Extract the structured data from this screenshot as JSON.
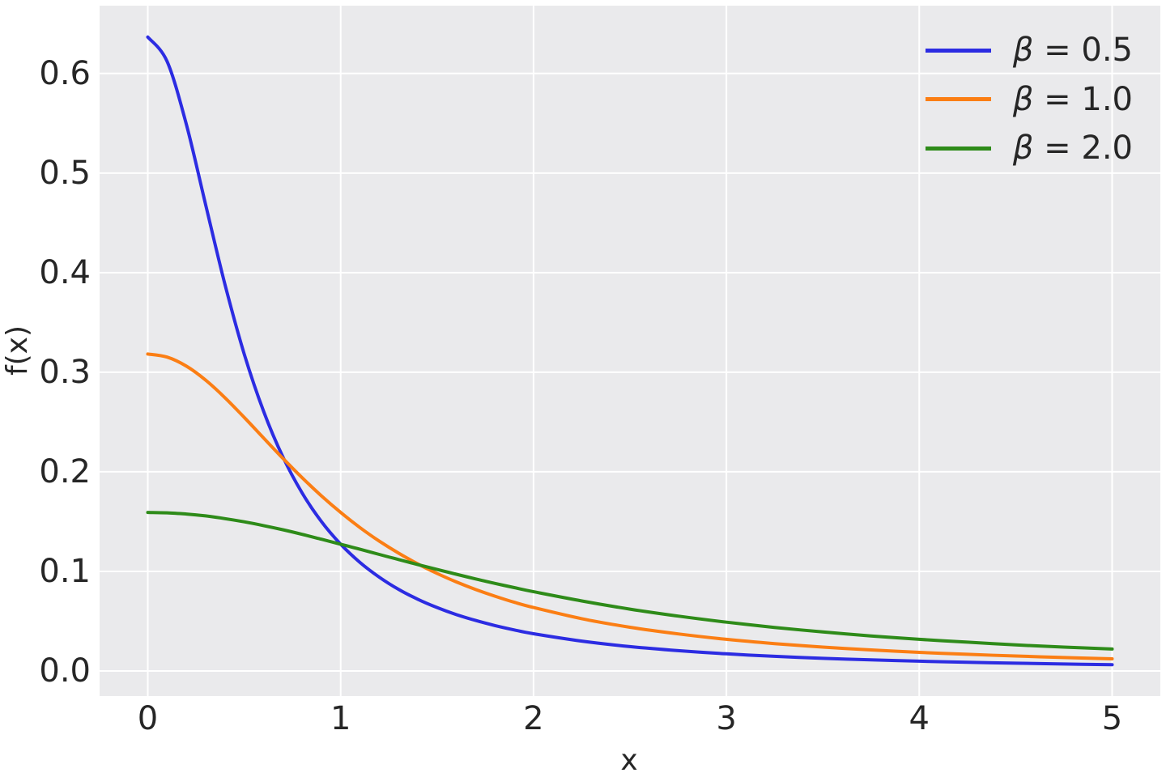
{
  "figure": {
    "background": "#ffffff"
  },
  "axes": {
    "face_color": "#eaeaec",
    "grid_color": "#ffffff",
    "text_color": "#262626",
    "grid_linewidth": 2,
    "curve_linewidth": 4
  },
  "chart_data": {
    "type": "line",
    "title": "",
    "xlabel": "x",
    "ylabel": "f(x)",
    "grid": true,
    "legend_position": "upper right",
    "xlim": [
      -0.25,
      5.25
    ],
    "ylim": [
      -0.0252,
      0.6681
    ],
    "xtick_values": [
      0,
      1,
      2,
      3,
      4,
      5
    ],
    "xtick_labels": [
      "0",
      "1",
      "2",
      "3",
      "4",
      "5"
    ],
    "ytick_values": [
      0.0,
      0.1,
      0.2,
      0.3,
      0.4,
      0.5,
      0.6
    ],
    "ytick_labels": [
      "0.0",
      "0.1",
      "0.2",
      "0.3",
      "0.4",
      "0.5",
      "0.6"
    ],
    "x": [
      0,
      0.1,
      0.2,
      0.3,
      0.4,
      0.5,
      0.6,
      0.7,
      0.8,
      0.9,
      1.0,
      1.1,
      1.2,
      1.3,
      1.4,
      1.5,
      1.6,
      1.7,
      1.8,
      1.9,
      2.0,
      2.25,
      2.5,
      2.75,
      3.0,
      3.25,
      3.5,
      3.75,
      4.0,
      4.25,
      4.5,
      4.75,
      5.0
    ],
    "series": [
      {
        "name": "β = 0.5",
        "symbol": "β",
        "label_rest": " = 0.5",
        "beta": 0.5,
        "color": "#2c2ce2",
        "values": [
          0.6366,
          0.6121,
          0.5488,
          0.4681,
          0.3882,
          0.3183,
          0.2609,
          0.2151,
          0.1788,
          0.1501,
          0.1273,
          0.109,
          0.0942,
          0.082,
          0.072,
          0.0637,
          0.0566,
          0.0507,
          0.0456,
          0.0412,
          0.0374,
          0.03,
          0.0245,
          0.0204,
          0.0172,
          0.0147,
          0.0127,
          0.0111,
          0.0098,
          0.0087,
          0.0078,
          0.007,
          0.0063
        ]
      },
      {
        "name": "β = 1.0",
        "symbol": "β",
        "label_rest": " = 1.0",
        "beta": 1.0,
        "color": "#fb7e14",
        "values": [
          0.3183,
          0.3152,
          0.3061,
          0.292,
          0.2744,
          0.2546,
          0.234,
          0.2136,
          0.1941,
          0.1759,
          0.1592,
          0.144,
          0.1304,
          0.1183,
          0.1075,
          0.0979,
          0.0894,
          0.0818,
          0.0751,
          0.069,
          0.0637,
          0.0525,
          0.0439,
          0.0372,
          0.0318,
          0.0275,
          0.024,
          0.0211,
          0.0187,
          0.0167,
          0.015,
          0.0135,
          0.0122
        ]
      },
      {
        "name": "β = 2.0",
        "symbol": "β",
        "label_rest": " = 2.0",
        "beta": 2.0,
        "color": "#2e8b19",
        "values": [
          0.1592,
          0.1588,
          0.1576,
          0.1557,
          0.153,
          0.1498,
          0.146,
          0.1418,
          0.1372,
          0.1323,
          0.1273,
          0.1222,
          0.117,
          0.1119,
          0.1068,
          0.1019,
          0.0971,
          0.0924,
          0.0879,
          0.0837,
          0.0796,
          0.0703,
          0.0621,
          0.0551,
          0.049,
          0.0437,
          0.0392,
          0.0352,
          0.0318,
          0.0289,
          0.0262,
          0.024,
          0.022
        ]
      }
    ]
  }
}
